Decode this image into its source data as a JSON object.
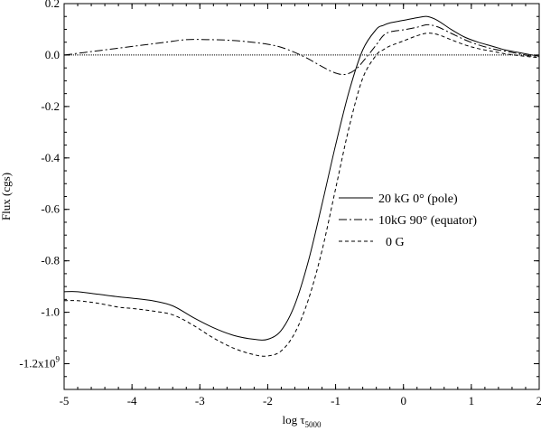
{
  "chart_data": {
    "type": "line",
    "xlabel": "log τ",
    "xlabel_subscript": "5000",
    "ylabel": "Flux (cgs)",
    "xlim": [
      -5,
      2
    ],
    "ylim": [
      -1.3,
      0.2
    ],
    "x_ticks": [
      {
        "value": -5,
        "label": "-5"
      },
      {
        "value": -4,
        "label": "-4"
      },
      {
        "value": -3,
        "label": "-3"
      },
      {
        "value": -2,
        "label": "-2"
      },
      {
        "value": -1,
        "label": "-1"
      },
      {
        "value": 0,
        "label": "0"
      },
      {
        "value": 1,
        "label": "1"
      },
      {
        "value": 2,
        "label": "2"
      }
    ],
    "y_ticks": [
      {
        "value": 0.2,
        "label": "0.2"
      },
      {
        "value": 0.0,
        "label": "0.0"
      },
      {
        "value": -0.2,
        "label": "-0.2"
      },
      {
        "value": -0.4,
        "label": "-0.4"
      },
      {
        "value": -0.6,
        "label": "-0.6"
      },
      {
        "value": -0.8,
        "label": "-0.8"
      },
      {
        "value": -1.0,
        "label": "-1.0"
      },
      {
        "value": -1.2,
        "label": "-1.2x10",
        "superscript": "9"
      }
    ],
    "zero_line": true,
    "legend_position": "right-center",
    "series": [
      {
        "name": "20 kG 0° (pole)",
        "dash": "solid",
        "x": [
          -5.0,
          -4.8,
          -4.5,
          -4.2,
          -4.0,
          -3.7,
          -3.4,
          -3.1,
          -2.8,
          -2.5,
          -2.2,
          -2.0,
          -1.8,
          -1.6,
          -1.4,
          -1.2,
          -1.0,
          -0.8,
          -0.6,
          -0.4,
          -0.3,
          -0.2,
          0.0,
          0.2,
          0.35,
          0.5,
          0.7,
          0.9,
          1.1,
          1.3,
          1.5,
          1.7,
          1.9,
          2.0
        ],
        "y": [
          -0.92,
          -0.92,
          -0.93,
          -0.94,
          -0.945,
          -0.955,
          -0.975,
          -1.02,
          -1.06,
          -1.09,
          -1.105,
          -1.105,
          -1.07,
          -0.97,
          -0.8,
          -0.58,
          -0.35,
          -0.14,
          0.02,
          0.1,
          0.115,
          0.125,
          0.135,
          0.145,
          0.15,
          0.135,
          0.1,
          0.07,
          0.05,
          0.035,
          0.02,
          0.01,
          0.0,
          -0.005
        ]
      },
      {
        "name": "10kG 90° (equator)",
        "dash": "dashdot",
        "x": [
          -5.0,
          -4.7,
          -4.4,
          -4.1,
          -3.8,
          -3.5,
          -3.2,
          -2.9,
          -2.6,
          -2.3,
          -2.0,
          -1.8,
          -1.6,
          -1.4,
          -1.2,
          -1.0,
          -0.85,
          -0.7,
          -0.55,
          -0.4,
          -0.3,
          -0.2,
          0.0,
          0.2,
          0.35,
          0.5,
          0.7,
          0.9,
          1.1,
          1.3,
          1.5,
          1.7,
          1.9,
          2.0
        ],
        "y": [
          0.0,
          0.01,
          0.02,
          0.03,
          0.04,
          0.05,
          0.06,
          0.06,
          0.058,
          0.052,
          0.042,
          0.03,
          0.01,
          -0.015,
          -0.045,
          -0.07,
          -0.075,
          -0.055,
          -0.01,
          0.04,
          0.075,
          0.09,
          0.098,
          0.108,
          0.118,
          0.11,
          0.085,
          0.06,
          0.04,
          0.025,
          0.015,
          0.005,
          -0.005,
          -0.008
        ]
      },
      {
        "name": "0 G",
        "dash": "dashed",
        "x": [
          -5.0,
          -4.8,
          -4.5,
          -4.2,
          -4.0,
          -3.7,
          -3.4,
          -3.1,
          -2.8,
          -2.5,
          -2.2,
          -2.0,
          -1.8,
          -1.6,
          -1.4,
          -1.2,
          -1.0,
          -0.8,
          -0.6,
          -0.4,
          -0.3,
          -0.2,
          0.0,
          0.2,
          0.35,
          0.5,
          0.7,
          0.9,
          1.1,
          1.3,
          1.5,
          1.7,
          1.9,
          2.0
        ],
        "y": [
          -0.955,
          -0.955,
          -0.965,
          -0.98,
          -0.985,
          -0.995,
          -1.01,
          -1.05,
          -1.1,
          -1.14,
          -1.165,
          -1.17,
          -1.15,
          -1.08,
          -0.95,
          -0.76,
          -0.52,
          -0.28,
          -0.09,
          0.0,
          0.02,
          0.035,
          0.055,
          0.075,
          0.085,
          0.08,
          0.06,
          0.04,
          0.025,
          0.015,
          0.005,
          -0.002,
          -0.008,
          -0.01
        ]
      }
    ]
  }
}
